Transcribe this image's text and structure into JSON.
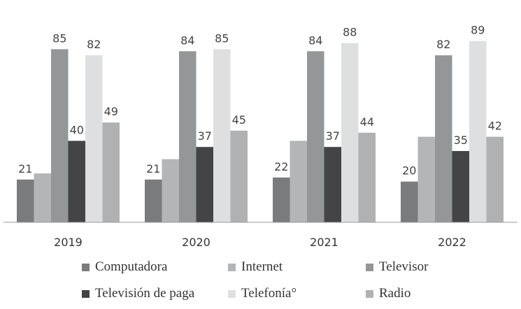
{
  "chart_data": {
    "type": "bar",
    "categories": [
      "2019",
      "2020",
      "2021",
      "2022"
    ],
    "series": [
      {
        "name": "Computadora",
        "color": "#7a7b7d",
        "values": [
          21,
          21,
          22,
          20
        ],
        "labeled": true
      },
      {
        "name": "Internet",
        "color": "#b4b5b7",
        "values": [
          24,
          31,
          40,
          42
        ],
        "labeled": false
      },
      {
        "name": "Televisor",
        "color": "#959698",
        "values": [
          85,
          84,
          84,
          82
        ],
        "labeled": true
      },
      {
        "name": "Televisión de paga",
        "color": "#444446",
        "values": [
          40,
          37,
          37,
          35
        ],
        "labeled": true
      },
      {
        "name": "Telefonía°",
        "color": "#dedfe0",
        "values": [
          82,
          85,
          88,
          89
        ],
        "labeled": true
      },
      {
        "name": "Radio",
        "color": "#b0b1b3",
        "values": [
          49,
          45,
          44,
          42
        ],
        "labeled": true
      }
    ],
    "ylim": [
      0,
      90
    ],
    "title": "",
    "xlabel": "",
    "ylabel": "",
    "grid": false,
    "legend_position": "bottom"
  }
}
